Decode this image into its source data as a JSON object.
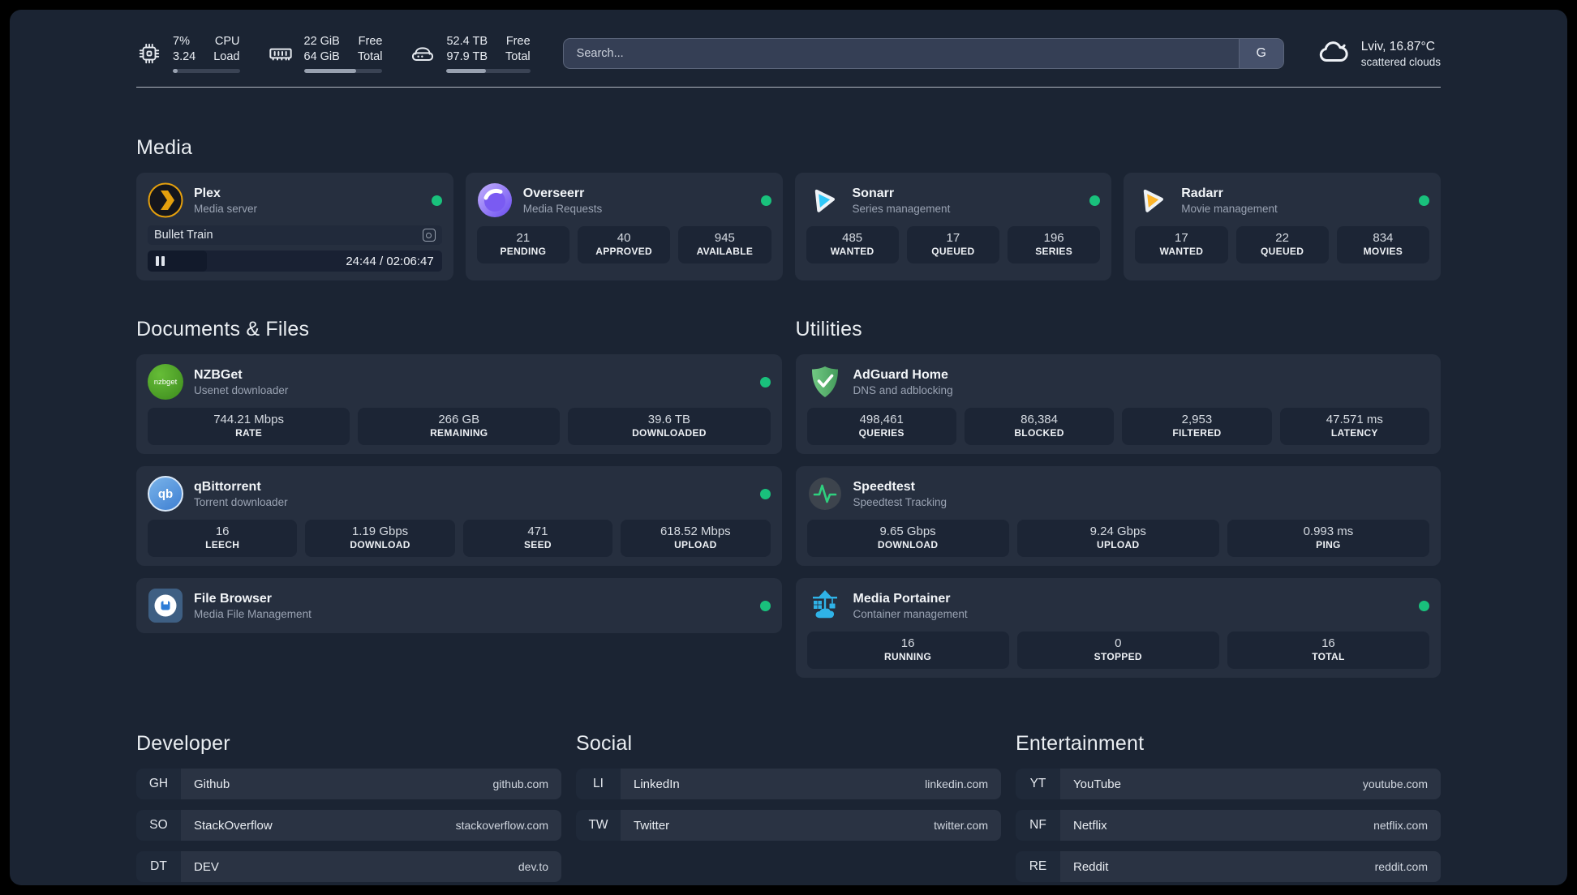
{
  "header": {
    "cpu": {
      "value1": "7%",
      "value2": "3.24",
      "label1": "CPU",
      "label2": "Load",
      "progress_pct": 7
    },
    "ram": {
      "value1": "22 GiB",
      "value2": "64 GiB",
      "label1": "Free",
      "label2": "Total",
      "progress_pct": 66
    },
    "disk": {
      "value1": "52.4 TB",
      "value2": "97.9 TB",
      "label1": "Free",
      "label2": "Total",
      "progress_pct": 47
    },
    "search": {
      "placeholder": "Search...",
      "engine_button": "G"
    },
    "weather": {
      "location_temp": "Lviv, 16.87°C",
      "condition": "scattered clouds"
    }
  },
  "sections": {
    "media": {
      "title": "Media",
      "plex": {
        "name": "Plex",
        "subtitle": "Media server",
        "status": "online",
        "player": {
          "title": "Bullet Train",
          "time": "24:44 / 02:06:47",
          "progress_pct": 20
        }
      },
      "overseerr": {
        "name": "Overseerr",
        "subtitle": "Media Requests",
        "status": "online",
        "stats": [
          {
            "value": "21",
            "label": "PENDING"
          },
          {
            "value": "40",
            "label": "APPROVED"
          },
          {
            "value": "945",
            "label": "AVAILABLE"
          }
        ]
      },
      "sonarr": {
        "name": "Sonarr",
        "subtitle": "Series management",
        "status": "online",
        "stats": [
          {
            "value": "485",
            "label": "WANTED"
          },
          {
            "value": "17",
            "label": "QUEUED"
          },
          {
            "value": "196",
            "label": "SERIES"
          }
        ]
      },
      "radarr": {
        "name": "Radarr",
        "subtitle": "Movie management",
        "status": "online",
        "stats": [
          {
            "value": "17",
            "label": "WANTED"
          },
          {
            "value": "22",
            "label": "QUEUED"
          },
          {
            "value": "834",
            "label": "MOVIES"
          }
        ]
      }
    },
    "documents": {
      "title": "Documents & Files",
      "nzbget": {
        "name": "NZBGet",
        "subtitle": "Usenet downloader",
        "status": "online",
        "stats": [
          {
            "value": "744.21 Mbps",
            "label": "RATE"
          },
          {
            "value": "266 GB",
            "label": "REMAINING"
          },
          {
            "value": "39.6 TB",
            "label": "DOWNLOADED"
          }
        ]
      },
      "qbittorrent": {
        "name": "qBittorrent",
        "subtitle": "Torrent downloader",
        "status": "online",
        "stats": [
          {
            "value": "16",
            "label": "LEECH"
          },
          {
            "value": "1.19 Gbps",
            "label": "DOWNLOAD"
          },
          {
            "value": "471",
            "label": "SEED"
          },
          {
            "value": "618.52 Mbps",
            "label": "UPLOAD"
          }
        ]
      },
      "filebrowser": {
        "name": "File Browser",
        "subtitle": "Media File Management",
        "status": "online"
      }
    },
    "utilities": {
      "title": "Utilities",
      "adguard": {
        "name": "AdGuard Home",
        "subtitle": "DNS and adblocking",
        "stats": [
          {
            "value": "498,461",
            "label": "QUERIES"
          },
          {
            "value": "86,384",
            "label": "BLOCKED"
          },
          {
            "value": "2,953",
            "label": "FILTERED"
          },
          {
            "value": "47.571 ms",
            "label": "LATENCY"
          }
        ]
      },
      "speedtest": {
        "name": "Speedtest",
        "subtitle": "Speedtest Tracking",
        "stats": [
          {
            "value": "9.65 Gbps",
            "label": "DOWNLOAD"
          },
          {
            "value": "9.24 Gbps",
            "label": "UPLOAD"
          },
          {
            "value": "0.993 ms",
            "label": "PING"
          }
        ]
      },
      "portainer": {
        "name": "Media Portainer",
        "subtitle": "Container management",
        "status": "online",
        "stats": [
          {
            "value": "16",
            "label": "RUNNING"
          },
          {
            "value": "0",
            "label": "STOPPED"
          },
          {
            "value": "16",
            "label": "TOTAL"
          }
        ]
      }
    },
    "links": {
      "developer": {
        "title": "Developer",
        "items": [
          {
            "abbr": "GH",
            "name": "Github",
            "url": "github.com"
          },
          {
            "abbr": "SO",
            "name": "StackOverflow",
            "url": "stackoverflow.com"
          },
          {
            "abbr": "DT",
            "name": "DEV",
            "url": "dev.to"
          }
        ]
      },
      "social": {
        "title": "Social",
        "items": [
          {
            "abbr": "LI",
            "name": "LinkedIn",
            "url": "linkedin.com"
          },
          {
            "abbr": "TW",
            "name": "Twitter",
            "url": "twitter.com"
          }
        ]
      },
      "entertainment": {
        "title": "Entertainment",
        "items": [
          {
            "abbr": "YT",
            "name": "YouTube",
            "url": "youtube.com"
          },
          {
            "abbr": "NF",
            "name": "Netflix",
            "url": "netflix.com"
          },
          {
            "abbr": "RE",
            "name": "Reddit",
            "url": "reddit.com"
          }
        ]
      }
    }
  },
  "icons": {
    "nzbget_glyph": "nzbget",
    "qbittorrent_glyph": "qb"
  },
  "colors": {
    "status_online": "#19c17c",
    "plex_amber": "#e5a00d",
    "sonarr_blue": "#2fc7f7",
    "radarr_yellow": "#fdb52a",
    "adguard_green": "#57b56a",
    "qbittorrent_blue": "#4a8fd8",
    "nzbget_green": "#4aa426",
    "portainer_blue": "#2fb3e8",
    "speedtest_pulse": "#2fd07e",
    "filebrowser_blue": "#2e7cd6"
  }
}
